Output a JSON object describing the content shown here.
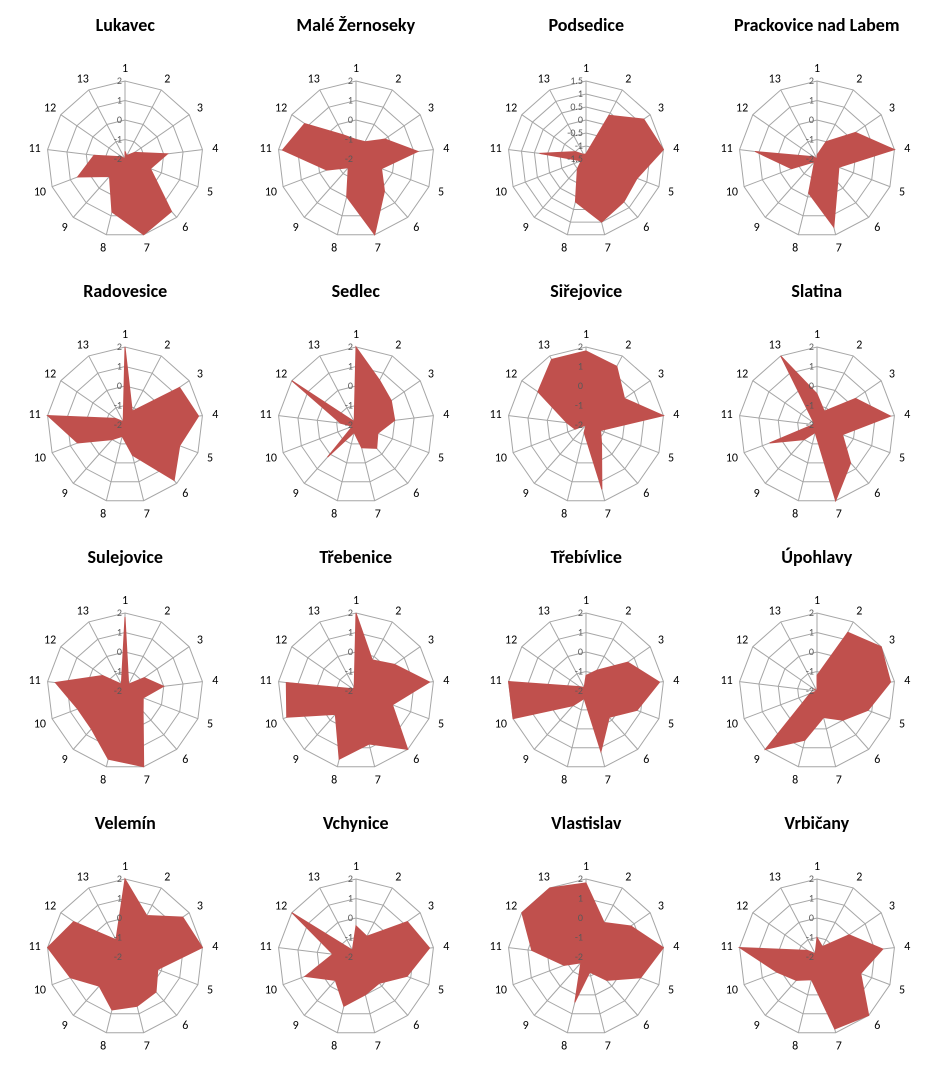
{
  "layout": {
    "rows": 4,
    "cols": 4
  },
  "style": {
    "background_color": "#ffffff",
    "grid_color": "#a6a6a6",
    "grid_width": 1,
    "area_fill": "#c0504d",
    "area_stroke": "#c0504d",
    "area_opacity": 1,
    "axis_label_color": "#000000",
    "axis_label_fontsize": 12,
    "radial_tick_color": "#595959",
    "radial_tick_fontsize": 10,
    "title_color": "#000000",
    "title_fontsize": 18,
    "title_weight": 700,
    "chart_radius": 78,
    "svg_size": 230,
    "spokes": 13,
    "rings": 5
  },
  "axis_labels": [
    "1",
    "2",
    "3",
    "4",
    "5",
    "6",
    "7",
    "8",
    "9",
    "10",
    "11",
    "12",
    "13"
  ],
  "charts": [
    {
      "title": "Lukavec",
      "min": -2,
      "max": 2,
      "ticks": [
        "2",
        "1",
        "0",
        "-1",
        "-2"
      ],
      "values": [
        -1.6,
        -1.8,
        -1.4,
        0.2,
        -0.6,
        1.6,
        2.0,
        0.8,
        -0.8,
        0.6,
        -0.4,
        -1.8,
        -2.0
      ]
    },
    {
      "title": "Malé Žernoseky",
      "min": -2,
      "max": 2,
      "ticks": [
        "2",
        "1",
        "0",
        "-1",
        "-2"
      ],
      "values": [
        -1.0,
        -1.0,
        -0.2,
        1.2,
        -0.6,
        0.2,
        2.0,
        0.0,
        -1.4,
        -0.4,
        1.8,
        1.2,
        -0.6
      ]
    },
    {
      "title": "Podsedice",
      "min": -1.5,
      "max": 1.5,
      "ticks": [
        "1.5",
        "1",
        "0.5",
        "0",
        "-0.5",
        "-1",
        "-1.5"
      ],
      "values": [
        -1.3,
        0.4,
        1.2,
        1.5,
        0.6,
        0.7,
        1.0,
        0.2,
        -1.0,
        -1.3,
        0.3,
        -1.0,
        -1.3
      ]
    },
    {
      "title": "Prackovice nad Labem",
      "min": -2,
      "max": 2,
      "ticks": [
        "2",
        "1",
        "0",
        "-1",
        "-2"
      ],
      "values": [
        -1.8,
        -1.0,
        0.4,
        2.0,
        -0.8,
        -0.4,
        1.6,
        -0.2,
        -1.8,
        -0.6,
        1.2,
        -1.8,
        -2.0
      ]
    },
    {
      "title": "Radovesice",
      "min": -2,
      "max": 2,
      "ticks": [
        "2",
        "1",
        "0",
        "-1",
        "-2"
      ],
      "values": [
        2.0,
        -1.2,
        1.4,
        1.8,
        1.0,
        1.8,
        -0.4,
        -1.4,
        -1.0,
        0.6,
        2.0,
        -1.4,
        -1.8
      ]
    },
    {
      "title": "Sedlec",
      "min": -2,
      "max": 2,
      "ticks": [
        "2",
        "1",
        "0",
        "-1",
        "-2"
      ],
      "values": [
        2.0,
        0.6,
        0.2,
        0.0,
        -0.8,
        -0.4,
        -0.8,
        -1.6,
        0.2,
        -1.8,
        -1.2,
        2.0,
        -1.8
      ]
    },
    {
      "title": "Siřejovice",
      "min": -2,
      "max": 2,
      "ticks": [
        "2",
        "1",
        "0",
        "-1",
        "-2"
      ],
      "values": [
        1.8,
        1.4,
        0.4,
        2.0,
        -1.2,
        -0.8,
        1.4,
        -1.6,
        -2.0,
        -1.4,
        -1.0,
        1.0,
        1.8
      ]
    },
    {
      "title": "Slatina",
      "min": -2,
      "max": 2,
      "ticks": [
        "2",
        "1",
        "0",
        "-1",
        "-2"
      ],
      "values": [
        -0.4,
        -1.2,
        0.4,
        1.8,
        -0.6,
        0.6,
        2.0,
        -1.6,
        -1.0,
        0.6,
        -1.8,
        -1.8,
        2.0
      ]
    },
    {
      "title": "Sulejovice",
      "min": -2,
      "max": 2,
      "ticks": [
        "2",
        "1",
        "0",
        "-1",
        "-2"
      ],
      "values": [
        1.8,
        -1.6,
        -0.8,
        0.0,
        -1.0,
        -0.6,
        2.0,
        1.6,
        0.6,
        0.6,
        1.6,
        -0.6,
        -1.6
      ]
    },
    {
      "title": "Třebenice",
      "min": -2,
      "max": 2,
      "ticks": [
        "2",
        "1",
        "0",
        "-1",
        "-2"
      ],
      "values": [
        2.0,
        -0.2,
        0.4,
        1.8,
        0.0,
        2.0,
        0.8,
        1.6,
        -0.4,
        1.8,
        1.6,
        -1.8,
        -1.8
      ]
    },
    {
      "title": "Třebívlice",
      "min": -2,
      "max": 2,
      "ticks": [
        "2",
        "1",
        "0",
        "-1",
        "-2"
      ],
      "values": [
        -1.2,
        -0.8,
        0.6,
        1.8,
        0.8,
        -0.2,
        1.2,
        -1.6,
        -1.0,
        2.0,
        2.0,
        -1.6,
        -1.8
      ]
    },
    {
      "title": "Úpohlavy",
      "min": -2,
      "max": 2,
      "ticks": [
        "2",
        "1",
        "0",
        "-1",
        "-2"
      ],
      "values": [
        -1.2,
        1.4,
        2.0,
        1.8,
        0.8,
        0.0,
        -0.6,
        0.6,
        2.0,
        -1.6,
        -2.0,
        -1.8,
        -2.0
      ]
    },
    {
      "title": "Velemín",
      "min": -2,
      "max": 2,
      "ticks": [
        "2",
        "1",
        "0",
        "-1",
        "-2"
      ],
      "values": [
        2.0,
        0.4,
        1.6,
        2.0,
        -0.2,
        0.4,
        0.6,
        0.8,
        0.0,
        1.0,
        2.0,
        1.2,
        -1.0
      ]
    },
    {
      "title": "Vchynice",
      "min": -2,
      "max": 2,
      "ticks": [
        "2",
        "1",
        "0",
        "-1",
        "-2"
      ],
      "values": [
        -0.4,
        -0.8,
        1.2,
        1.8,
        0.8,
        -0.2,
        0.0,
        0.6,
        -0.4,
        0.8,
        -0.8,
        2.0,
        -1.6
      ]
    },
    {
      "title": "Vlastislav",
      "min": -2,
      "max": 2,
      "ticks": [
        "2",
        "1",
        "0",
        "-1",
        "-2"
      ],
      "values": [
        1.8,
        0.0,
        0.8,
        2.0,
        1.0,
        -0.4,
        -1.2,
        0.4,
        -1.6,
        -0.8,
        0.8,
        2.0,
        2.0
      ]
    },
    {
      "title": "Vrbičany",
      "min": -2,
      "max": 2,
      "ticks": [
        "2",
        "1",
        "0",
        "-1",
        "-2"
      ],
      "values": [
        -1.0,
        -1.4,
        0.0,
        1.4,
        0.4,
        2.0,
        1.8,
        -0.8,
        -0.4,
        0.2,
        2.0,
        -1.4,
        -1.8
      ]
    }
  ]
}
